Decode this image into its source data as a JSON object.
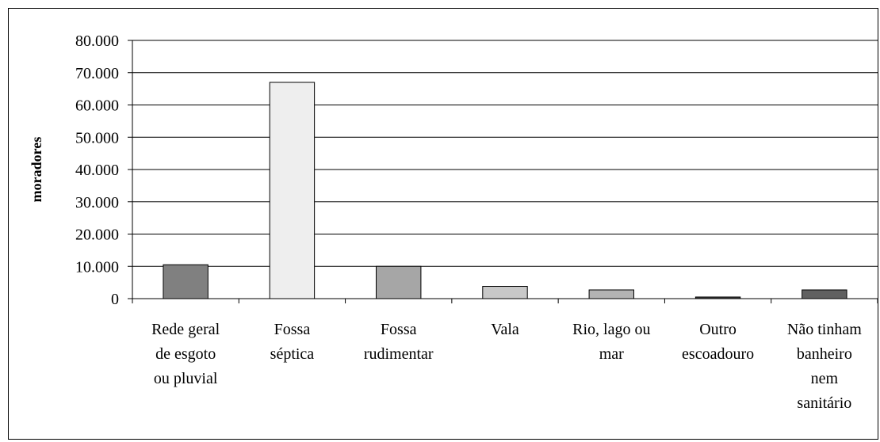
{
  "chart_data": {
    "type": "bar",
    "y_label": "moradores",
    "categories": [
      [
        "Rede geral",
        "de esgoto",
        "ou pluvial"
      ],
      [
        "Fossa",
        "séptica"
      ],
      [
        "Fossa",
        "rudimentar"
      ],
      [
        "Vala"
      ],
      [
        "Rio, lago ou",
        "mar"
      ],
      [
        "Outro",
        "escoadouro"
      ],
      [
        "Não tinham",
        "banheiro",
        "nem",
        "sanitário"
      ]
    ],
    "values": [
      10500,
      67000,
      10000,
      3800,
      2700,
      500,
      2700
    ],
    "colors": [
      "#808080",
      "#eeeeee",
      "#a6a6a6",
      "#c8c8c8",
      "#b3b3b3",
      "#404040",
      "#606060"
    ],
    "ylim": [
      0,
      80000
    ],
    "yticks": [
      0,
      {
        "value": 10000,
        "label": "10.000"
      },
      {
        "value": 20000,
        "label": "20.000"
      },
      {
        "value": 30000,
        "label": "30.000"
      },
      {
        "value": 40000,
        "label": "40.000"
      },
      {
        "value": 50000,
        "label": "50.000"
      },
      {
        "value": 60000,
        "label": "60.000"
      },
      {
        "value": 70000,
        "label": "70.000"
      },
      {
        "value": 80000,
        "label": "80.000"
      }
    ],
    "grid": true
  }
}
